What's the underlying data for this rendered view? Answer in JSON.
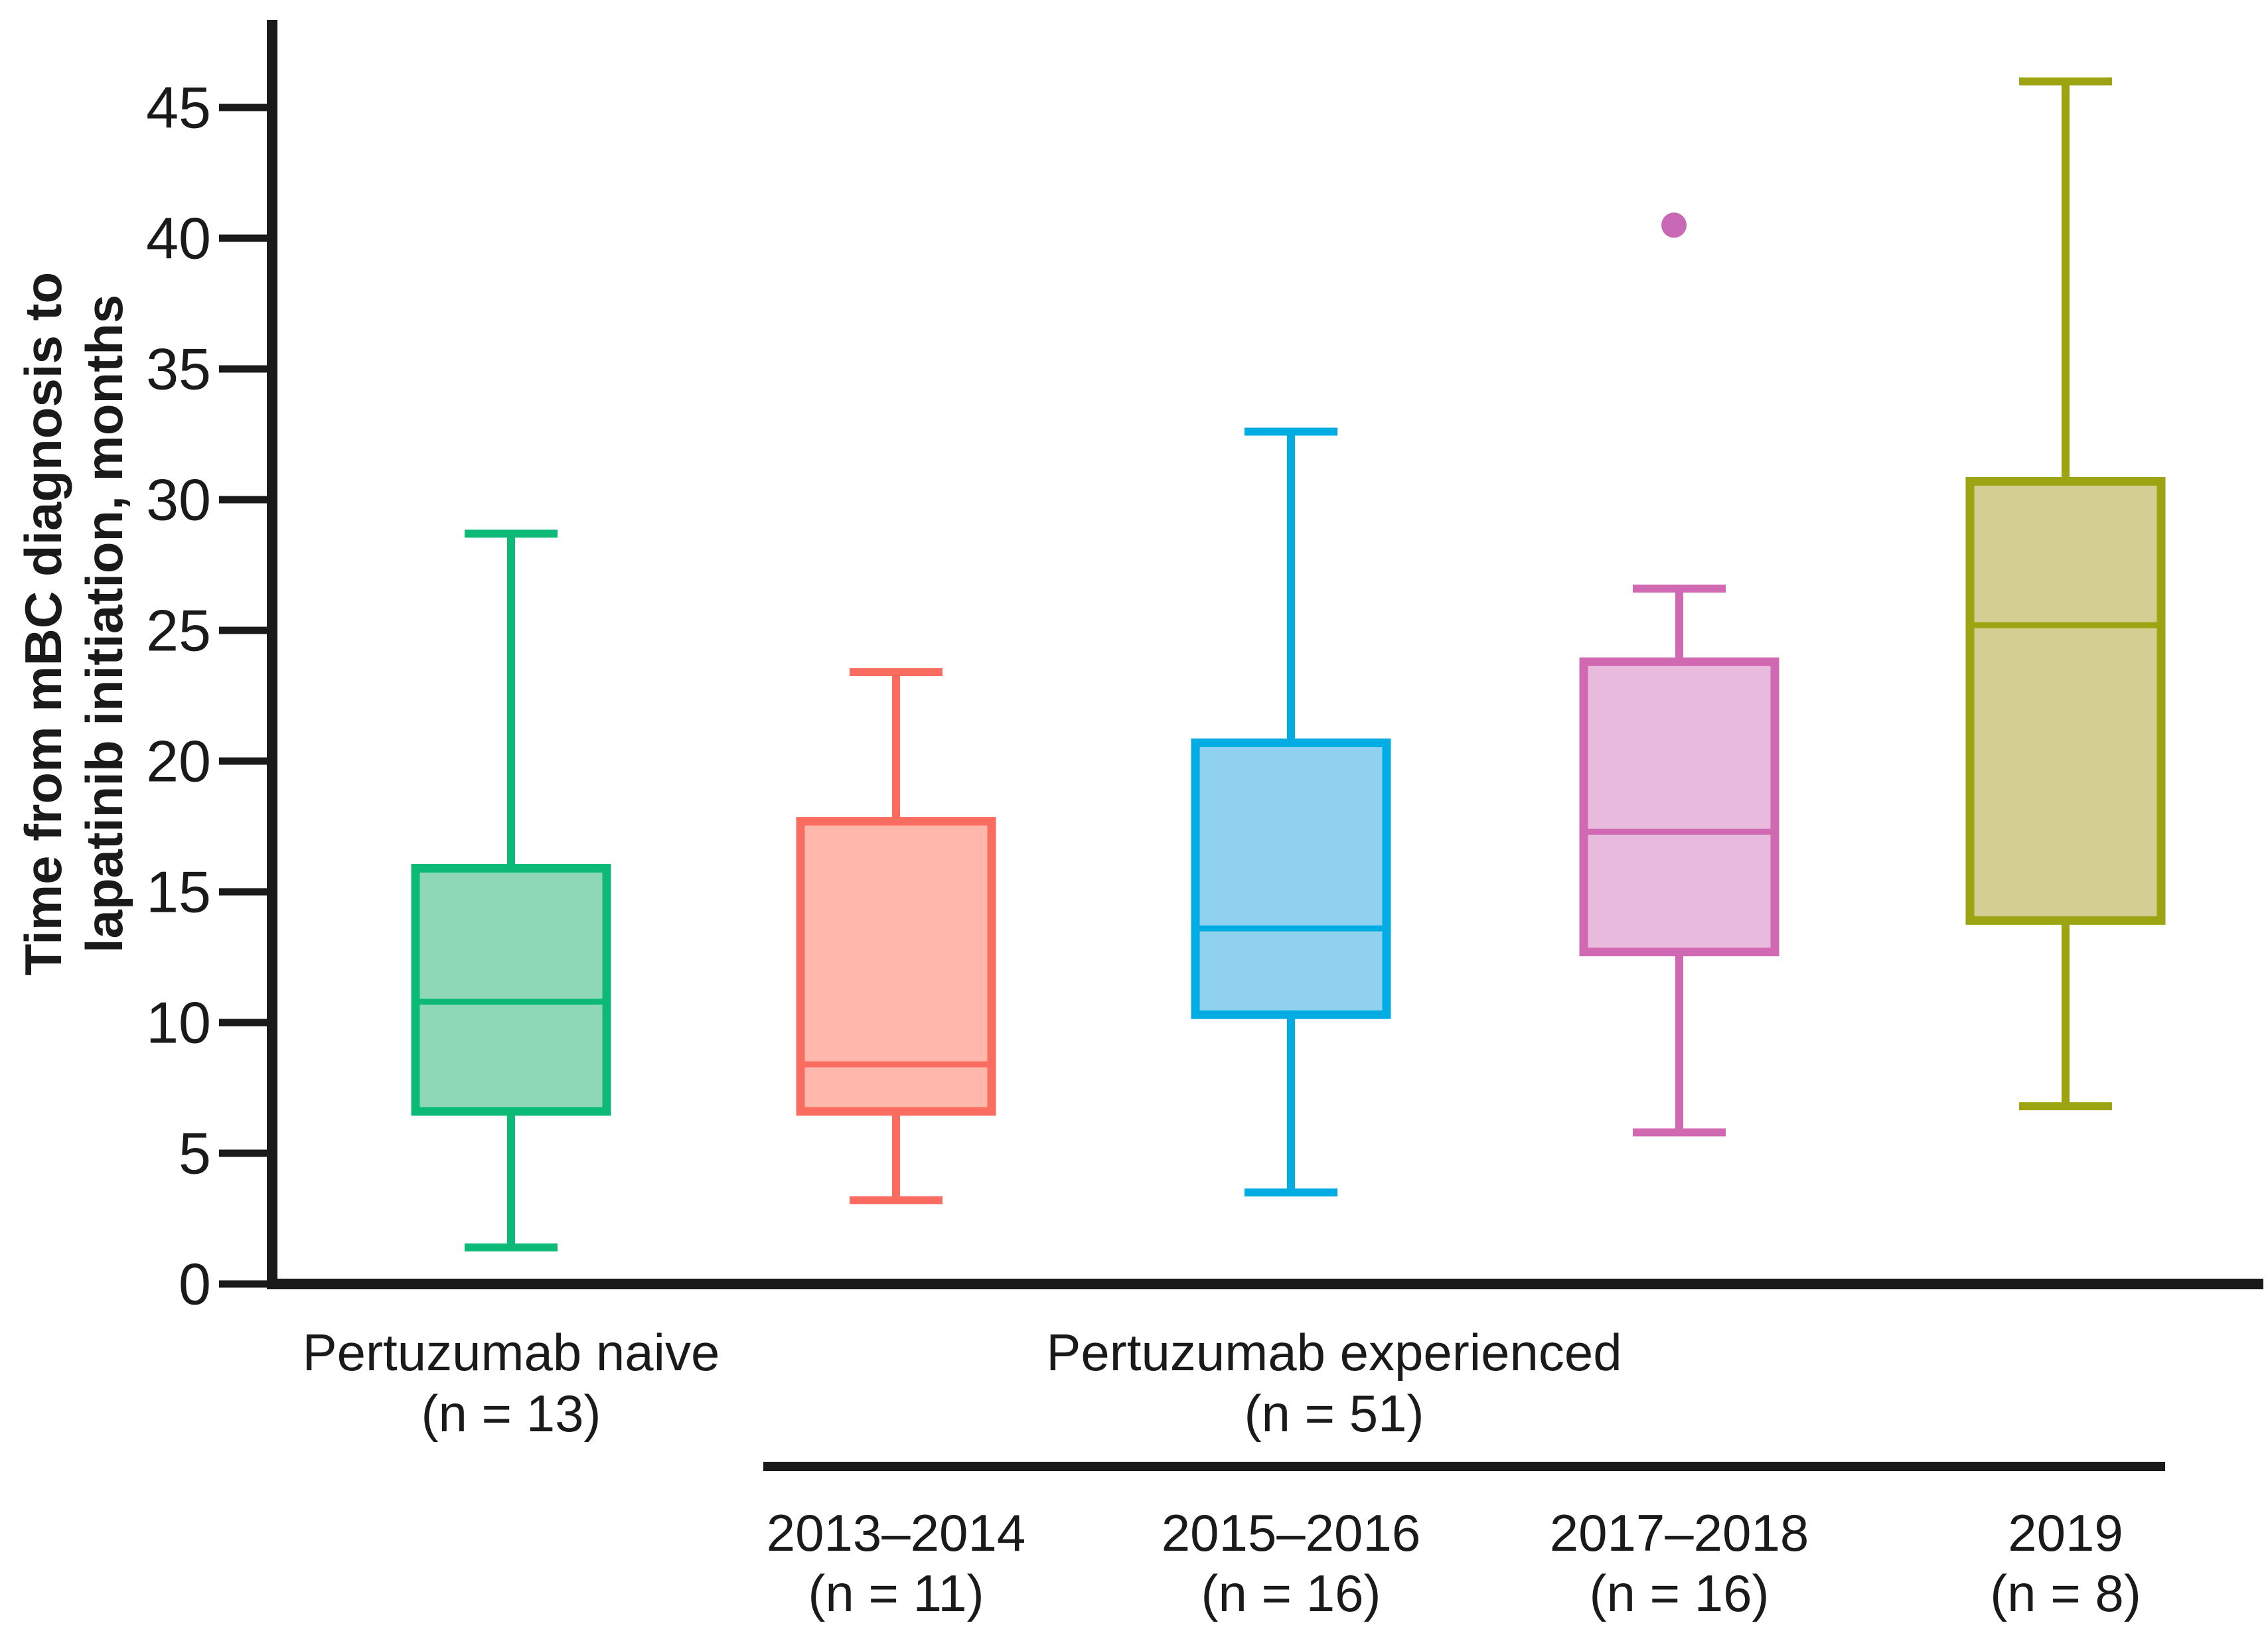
{
  "chart_data": {
    "type": "box",
    "title": "",
    "ylabel_lines": [
      "Time from mBC diagnosis to",
      "lapatinib initiation, months"
    ],
    "xlabel": "",
    "ylim": [
      0,
      47.5
    ],
    "yticks": [
      0,
      5,
      10,
      15,
      20,
      25,
      30,
      35,
      40,
      45
    ],
    "grid": false,
    "legend": "none",
    "series": [
      {
        "name": "Pertuzumab naive (n = 13)",
        "whisker_low": 1.4,
        "q1": 6.6,
        "median": 10.8,
        "q3": 15.9,
        "whisker_high": 28.7,
        "outliers": [],
        "stroke": "#0db976",
        "fill": "#8fd8b5"
      },
      {
        "name": "2013–2014 (n = 11)",
        "whisker_low": 3.2,
        "q1": 6.6,
        "median": 8.4,
        "q3": 17.7,
        "whisker_high": 23.4,
        "outliers": [],
        "stroke": "#fb6c60",
        "fill": "#ffb7ab"
      },
      {
        "name": "2015–2016 (n = 16)",
        "whisker_low": 3.5,
        "q1": 10.3,
        "median": 13.6,
        "q3": 20.7,
        "whisker_high": 32.6,
        "outliers": [],
        "stroke": "#00ace2",
        "fill": "#8fd1ee"
      },
      {
        "name": "2017–2018 (n = 16)",
        "whisker_low": 5.8,
        "q1": 12.7,
        "median": 17.3,
        "q3": 23.8,
        "whisker_high": 26.6,
        "outliers": [
          40.5
        ],
        "stroke": "#d168b2",
        "fill": "#e7bade",
        "outlier_color": "#c968b4"
      },
      {
        "name": "2019 (n = 8)",
        "whisker_low": 6.8,
        "q1": 13.9,
        "median": 25.2,
        "q3": 30.7,
        "whisker_high": 46.0,
        "outliers": [],
        "stroke": "#9ca511",
        "fill": "#d3cf92"
      }
    ],
    "x_axis": {
      "group_labels": [
        {
          "line1": "Pertuzumab naive",
          "line2": "(n = 13)"
        },
        {
          "line1": "Pertuzumab experienced",
          "line2": "(n = 51)"
        }
      ],
      "subgroup_labels": [
        {
          "line1": "2013–2014",
          "line2": "(n = 11)"
        },
        {
          "line1": "2015–2016",
          "line2": "(n = 16)"
        },
        {
          "line1": "2017–2018",
          "line2": "(n = 16)"
        },
        {
          "line1": "2019",
          "line2": "(n = 8)"
        }
      ]
    },
    "colors": {
      "axis": "#1a1a1a",
      "background": "#ffffff"
    }
  }
}
